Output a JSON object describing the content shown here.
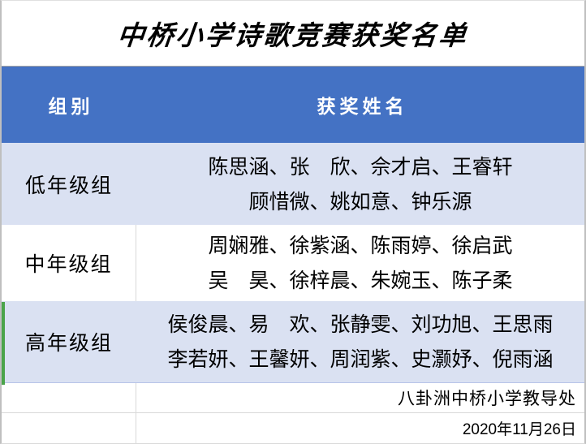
{
  "title": "中桥小学诗歌竞赛获奖名单",
  "header": {
    "group_label": "组别",
    "names_label": "获奖姓名"
  },
  "rows": [
    {
      "group": "低年级组",
      "names_line1": "陈思涵、张　欣、佘才启、王睿轩",
      "names_line2": "顾惜微、姚如意、钟乐源"
    },
    {
      "group": "中年级组",
      "names_line1": "周娴雅、徐紫涵、陈雨婷、徐启武",
      "names_line2": "吴　昊、徐梓晨、朱婉玉、陈子柔"
    },
    {
      "group": "高年级组",
      "names_line1": "侯俊晨、易　欢、张静雯、刘功旭、王思雨",
      "names_line2": "李若妍、王馨妍、周润紫、史灏妤、倪雨涵"
    }
  ],
  "footer": {
    "issuer": "八卦洲中桥小学教导处",
    "date": "2020年11月26日"
  },
  "colors": {
    "header_bg": "#4472C4",
    "header_text": "#FFFFFF",
    "alt_row_bg": "#DAE1F2",
    "accent_green": "#4BA44B",
    "grid_line": "#D9D9D9",
    "text": "#000000"
  }
}
